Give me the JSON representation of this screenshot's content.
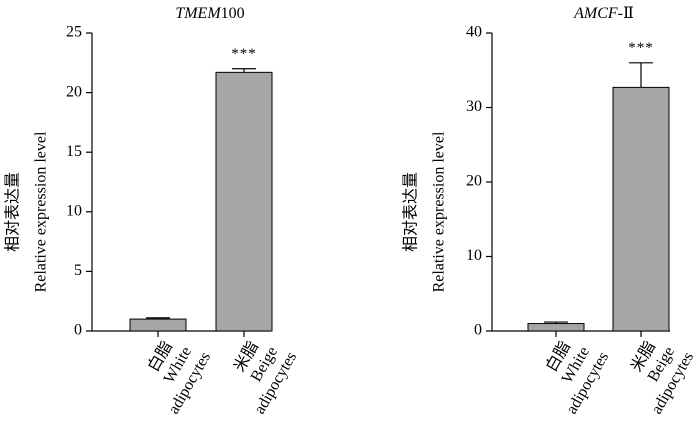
{
  "chart_data": [
    {
      "type": "bar",
      "title": {
        "italic": "TMEM",
        "plain": "100"
      },
      "ylabel": {
        "line1": "相对表达量",
        "line2": "Relative expression level"
      },
      "xlabel": "",
      "ylim": [
        0,
        25
      ],
      "yticks": [
        0,
        5,
        10,
        15,
        20,
        25
      ],
      "grid": false,
      "categories": [
        {
          "cn": "白脂",
          "en1": "White",
          "en2": "adipocytes"
        },
        {
          "cn": "米脂",
          "en1": "Beige",
          "en2": "adipocytes"
        }
      ],
      "values": [
        1.0,
        21.7
      ],
      "errors": [
        0.1,
        0.3
      ],
      "significance": [
        "",
        "***"
      ],
      "bar_color": "#a6a6a6"
    },
    {
      "type": "bar",
      "title": {
        "italic": "AMCF",
        "plain": "-Ⅱ"
      },
      "ylabel": {
        "line1": "相对表达量",
        "line2": "Relative expression level"
      },
      "xlabel": "",
      "ylim": [
        0,
        40
      ],
      "yticks": [
        0,
        10,
        20,
        30,
        40
      ],
      "grid": false,
      "categories": [
        {
          "cn": "白脂",
          "en1": "White",
          "en2": "adipocytes"
        },
        {
          "cn": "米脂",
          "en1": "Beige",
          "en2": "adipocytes"
        }
      ],
      "values": [
        1.0,
        32.7
      ],
      "errors": [
        0.2,
        3.3
      ],
      "significance": [
        "",
        "***"
      ],
      "bar_color": "#a6a6a6"
    }
  ]
}
